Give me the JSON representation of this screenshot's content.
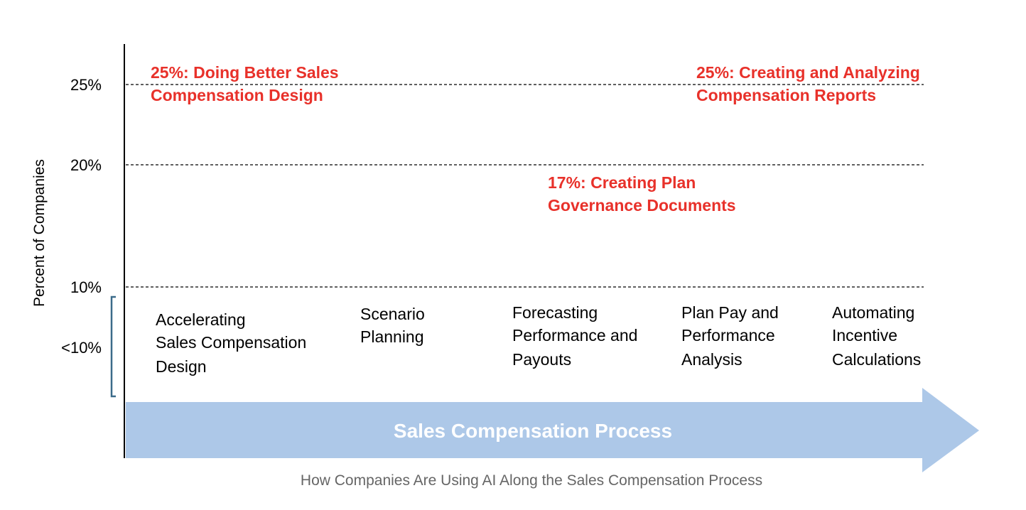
{
  "colors": {
    "highlight": "#e8312a",
    "arrow_fill": "#adc8e8",
    "bracket": "#3b6b8a",
    "caption": "#666666"
  },
  "y_axis": {
    "title": "Percent of Companies",
    "ticks": [
      "25%",
      "20%",
      "10%",
      "<10%"
    ]
  },
  "highlights": [
    {
      "lines": [
        "25%: Doing Better Sales",
        "Compensation Design"
      ]
    },
    {
      "lines": [
        "25%: Creating and Analyzing",
        "Compensation Reports"
      ]
    },
    {
      "lines": [
        "17%: Creating Plan",
        "Governance Documents"
      ]
    }
  ],
  "stages": [
    {
      "lines": [
        "Accelerating",
        "Sales Compensation",
        "Design"
      ]
    },
    {
      "lines": [
        "Scenario",
        "Planning"
      ]
    },
    {
      "lines": [
        "Forecasting",
        "Performance and",
        "Payouts"
      ]
    },
    {
      "lines": [
        "Plan Pay and",
        "Performance",
        "Analysis"
      ]
    },
    {
      "lines": [
        "Automating",
        "Incentive",
        "Calculations"
      ]
    }
  ],
  "process_arrow": {
    "label": "Sales Compensation Process"
  },
  "caption": "How Companies Are Using AI Along the Sales Compensation Process"
}
